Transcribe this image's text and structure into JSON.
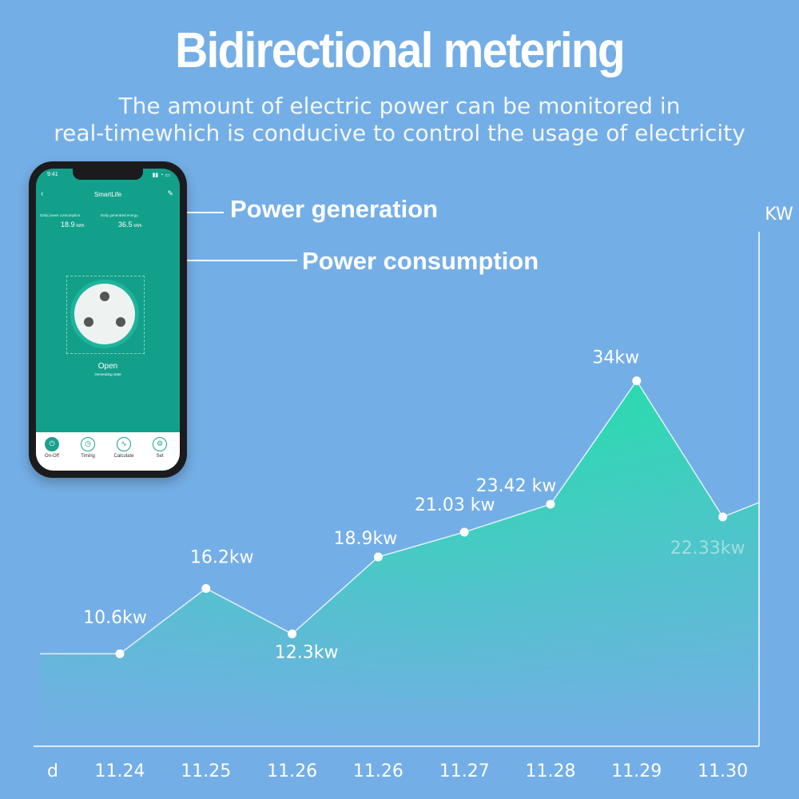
{
  "header": {
    "title": "Bidirectional metering",
    "subtitle_line1": "The amount of electric power can be monitored in",
    "subtitle_line2": "real-timewhich is conducive to control the usage of electricity"
  },
  "callouts": {
    "generation": "Power generation",
    "consumption": "Power consumption"
  },
  "phone": {
    "time": "9:41",
    "app_name": "SmartLife",
    "consumption_label": "Daily power consumption",
    "consumption_value": "18.9",
    "consumption_unit": "kWh",
    "generation_label": "Daily generated energy",
    "generation_value": "36.5",
    "generation_unit": "kWh",
    "state": "Open",
    "state_sub": "Generating state",
    "tabs": [
      {
        "label": "On-Off",
        "icon": "power-icon"
      },
      {
        "label": "Timing",
        "icon": "clock-icon"
      },
      {
        "label": "Calculate",
        "icon": "chart-icon"
      },
      {
        "label": "Set",
        "icon": "gear-icon"
      }
    ]
  },
  "colors": {
    "background": "#74aee6",
    "area_top": "#1de3a5",
    "area_bottom": "#74aee6",
    "app_green": "#13a08b"
  },
  "chart_data": {
    "type": "area",
    "ylabel": "KW",
    "x_origin_label": "d",
    "categories": [
      "11.24",
      "11.25",
      "11.26",
      "11.26",
      "11.27",
      "11.28",
      "11.29",
      "11.30"
    ],
    "values": [
      10.6,
      16.2,
      12.3,
      18.9,
      21.03,
      23.42,
      34,
      22.33
    ],
    "value_labels": [
      "10.6kw",
      "16.2kw",
      "12.3kw",
      "18.9kw",
      "21.03 kw",
      "23.42 kw",
      "34kw",
      "22.33kw"
    ],
    "grid": false,
    "legend": "none"
  }
}
